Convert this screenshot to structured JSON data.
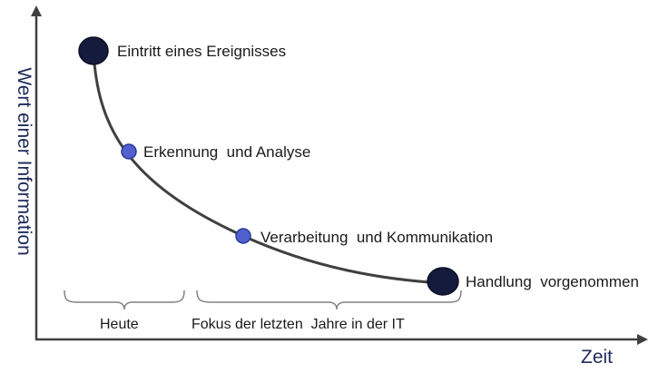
{
  "axes": {
    "y_title": "Wert einer Information",
    "x_title": "Zeit"
  },
  "points": [
    {
      "label": "Eintritt eines Ereignisses",
      "kind": "major"
    },
    {
      "label": "Erkennung  und Analyse",
      "kind": "minor"
    },
    {
      "label": "Verarbeitung  und Kommunikation",
      "kind": "minor"
    },
    {
      "label": "Handlung  vorgenommen",
      "kind": "major"
    }
  ],
  "brackets": [
    {
      "label": "Heute"
    },
    {
      "label": "Fokus der letzten  Jahre in der IT"
    }
  ],
  "colors": {
    "curve": "#404040",
    "axis": "#404040",
    "major_marker": "#141b3c",
    "minor_marker": "#5060cc",
    "minor_marker_stroke": "#2a3a99",
    "bracket": "#808080",
    "axis_title": "#1f2a5a"
  }
}
